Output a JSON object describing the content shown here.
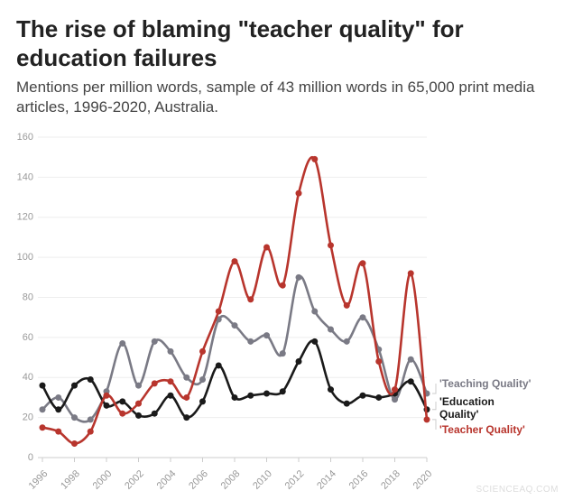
{
  "chart_data": {
    "type": "line",
    "title": "The rise of blaming \"teacher quality\" for education failures",
    "subtitle": "Mentions per million words, sample of 43 million words in 65,000 print media articles, 1996-2020, Australia.",
    "x": [
      1996,
      1997,
      1998,
      1999,
      2000,
      2001,
      2002,
      2003,
      2004,
      2005,
      2006,
      2007,
      2008,
      2009,
      2010,
      2011,
      2012,
      2013,
      2014,
      2015,
      2016,
      2017,
      2018,
      2019,
      2020
    ],
    "xlim": [
      1996,
      2020
    ],
    "xticks": [
      1996,
      1998,
      2000,
      2002,
      2004,
      2006,
      2008,
      2010,
      2012,
      2014,
      2016,
      2018,
      2020
    ],
    "ylim": [
      0,
      160
    ],
    "yticks": [
      0,
      20,
      40,
      60,
      80,
      100,
      120,
      140,
      160
    ],
    "grid": true,
    "series": [
      {
        "name": "'Teaching Quality'",
        "color": "#7a7a85",
        "values": [
          24,
          30,
          20,
          19,
          33,
          57,
          36,
          58,
          53,
          40,
          39,
          69,
          66,
          58,
          61,
          52,
          90,
          73,
          64,
          58,
          70,
          54,
          29,
          49,
          32
        ]
      },
      {
        "name": "'Education Quality'",
        "color": "#1a1a1a",
        "values": [
          36,
          24,
          36,
          39,
          26,
          28,
          21,
          22,
          31,
          20,
          28,
          46,
          30,
          31,
          32,
          33,
          48,
          58,
          34,
          27,
          31,
          30,
          32,
          38,
          24
        ]
      },
      {
        "name": "'Teacher Quality'",
        "color": "#b8352d",
        "values": [
          15,
          13,
          7,
          13,
          31,
          22,
          27,
          37,
          38,
          30,
          53,
          73,
          98,
          79,
          105,
          86,
          132,
          149,
          106,
          76,
          97,
          48,
          34,
          92,
          19
        ]
      }
    ],
    "watermark": "SCIENCEAQ.COM"
  }
}
